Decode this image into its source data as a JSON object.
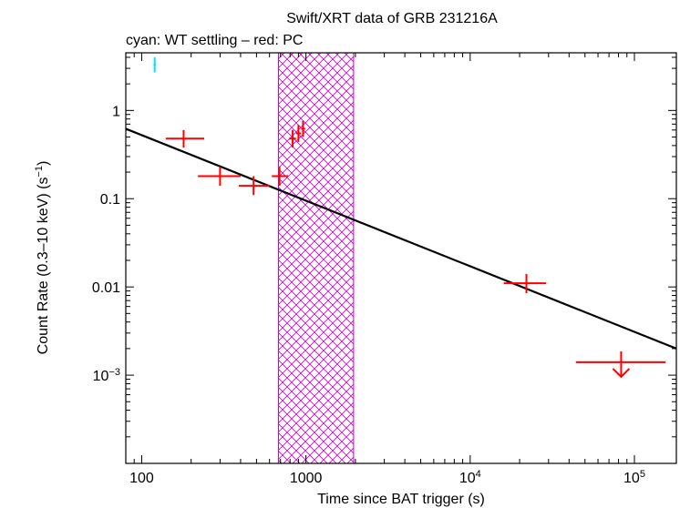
{
  "chart_data": {
    "type": "scatter",
    "title": "Swift/XRT data of GRB 231216A",
    "subtitle": "cyan: WT settling – red: PC",
    "xlabel": "Time since BAT trigger (s)",
    "ylabel": "Count Rate (0.3–10 keV) (s",
    "ylabel_sup": "−1",
    "ylabel_end": ")",
    "x_scale": "log",
    "y_scale": "log",
    "xlim": [
      80,
      180000
    ],
    "ylim": [
      0.0001,
      4.5
    ],
    "x_ticks": [
      {
        "value": 100,
        "label": "100"
      },
      {
        "value": 1000,
        "label": "1000"
      },
      {
        "value": 10000,
        "label": "10",
        "sup": "4"
      },
      {
        "value": 100000,
        "label": "10",
        "sup": "5"
      }
    ],
    "y_ticks": [
      {
        "value": 1,
        "label": "1"
      },
      {
        "value": 0.1,
        "label": "0.1"
      },
      {
        "value": 0.01,
        "label": "0.01"
      },
      {
        "value": 0.001,
        "label": "10",
        "sup": "−3"
      }
    ],
    "series": [
      {
        "name": "WT settling",
        "color": "#00e5ff",
        "points": [
          {
            "x": 120,
            "xlo": 118,
            "xhi": 122,
            "y": 3.3,
            "ylo": 2.7,
            "yhi": 4.0
          }
        ]
      },
      {
        "name": "PC",
        "color": "#ff0000",
        "points": [
          {
            "x": 180,
            "xlo": 140,
            "xhi": 240,
            "y": 0.48,
            "ylo": 0.38,
            "yhi": 0.6
          },
          {
            "x": 300,
            "xlo": 220,
            "xhi": 400,
            "y": 0.18,
            "ylo": 0.14,
            "yhi": 0.23
          },
          {
            "x": 480,
            "xlo": 390,
            "xhi": 600,
            "y": 0.14,
            "ylo": 0.11,
            "yhi": 0.18
          },
          {
            "x": 690,
            "xlo": 620,
            "xhi": 780,
            "y": 0.18,
            "ylo": 0.14,
            "yhi": 0.23
          },
          {
            "x": 830,
            "xlo": 790,
            "xhi": 870,
            "y": 0.48,
            "ylo": 0.38,
            "yhi": 0.6
          },
          {
            "x": 900,
            "xlo": 870,
            "xhi": 935,
            "y": 0.55,
            "ylo": 0.44,
            "yhi": 0.68
          },
          {
            "x": 960,
            "xlo": 935,
            "xhi": 990,
            "y": 0.62,
            "ylo": 0.5,
            "yhi": 0.76
          },
          {
            "x": 22000,
            "xlo": 16000,
            "xhi": 29000,
            "y": 0.011,
            "ylo": 0.0085,
            "yhi": 0.014
          }
        ]
      },
      {
        "name": "PC upper limit",
        "color": "#ff0000",
        "upper_limit": true,
        "points": [
          {
            "x": 83000,
            "xlo": 44000,
            "xhi": 155000,
            "y": 0.0014
          }
        ]
      }
    ],
    "fit_line": {
      "color": "#000000",
      "x": [
        80,
        180000
      ],
      "y": [
        0.62,
        0.002
      ]
    },
    "shaded_region": {
      "color": "#cc00cc",
      "pattern": "crosshatch",
      "x_range": [
        680,
        1950
      ]
    }
  }
}
